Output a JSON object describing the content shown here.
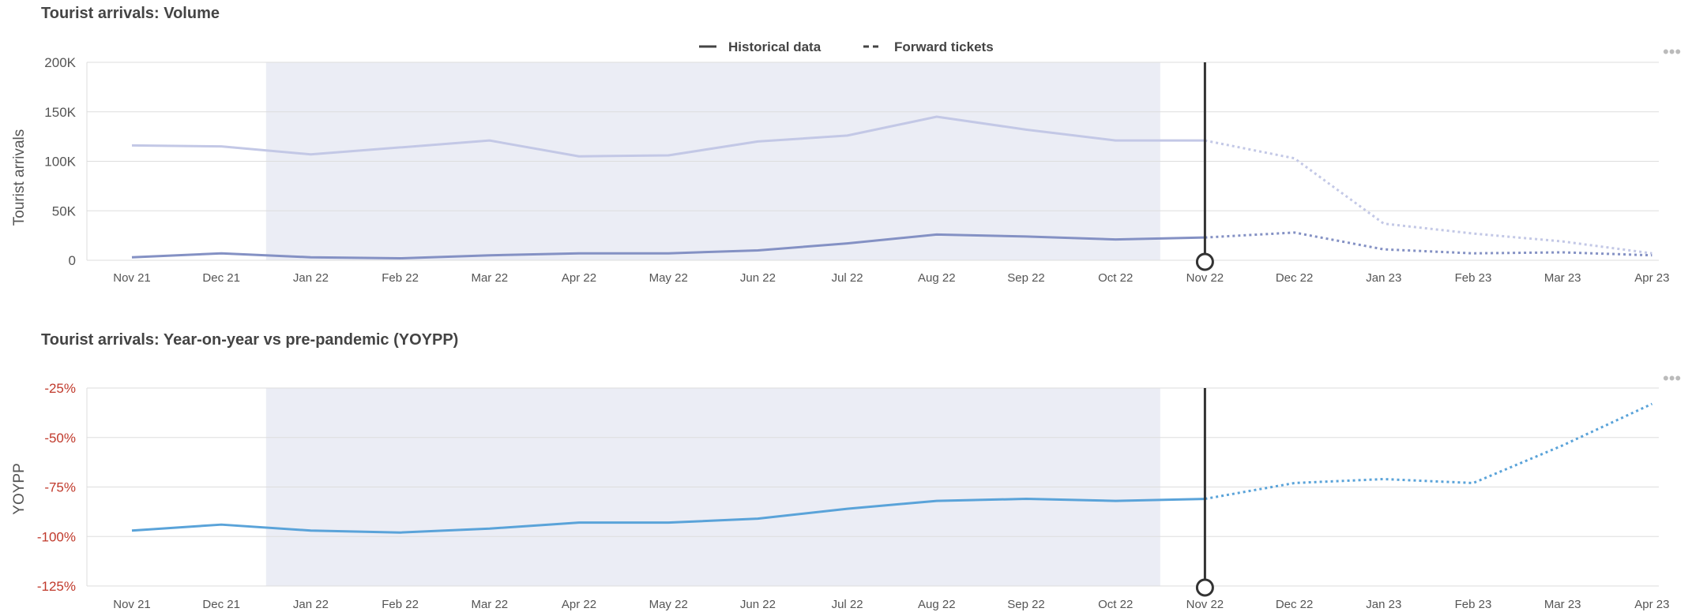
{
  "legend": {
    "historical": "Historical data",
    "forward": "Forward tickets"
  },
  "menu_glyph": "•••",
  "colors": {
    "shade": "#ebedf5",
    "light_series": "#c3c8e6",
    "dark_series": "#8491c4",
    "yoy_series": "#5aa3d9",
    "divider": "#333333",
    "grid": "#dddddd"
  },
  "chart_data": [
    {
      "type": "line",
      "title": "Tourist arrivals: Volume",
      "ylabel": "Tourist arrivals",
      "xlabel": "",
      "categories": [
        "Nov 21",
        "Dec 21",
        "Jan 22",
        "Feb 22",
        "Mar 22",
        "Apr 22",
        "May 22",
        "Jun 22",
        "Jul 22",
        "Aug 22",
        "Sep 22",
        "Oct 22",
        "Nov 22",
        "Dec 22",
        "Jan 23",
        "Feb 23",
        "Mar 23",
        "Apr 23"
      ],
      "ylim": [
        0,
        200000
      ],
      "yticks": [
        0,
        50000,
        100000,
        150000,
        200000
      ],
      "ytick_labels": [
        "0",
        "50K",
        "100K",
        "150K",
        "200K"
      ],
      "grid": true,
      "legend_position": "top-center",
      "shaded_period": [
        "Dec 21",
        "Oct 22"
      ],
      "current_marker": "Nov 22",
      "series": [
        {
          "style": "light",
          "historical_values": [
            116000,
            115000,
            107000,
            114000,
            121000,
            105000,
            106000,
            120000,
            126000,
            145000,
            132000,
            121000,
            121000
          ],
          "forward_values": [
            121000,
            103000,
            37000,
            27000,
            19000,
            7000
          ]
        },
        {
          "style": "dark",
          "historical_values": [
            3000,
            7000,
            3000,
            2000,
            5000,
            7000,
            7000,
            10000,
            17000,
            26000,
            24000,
            21000,
            23000
          ],
          "forward_values": [
            23000,
            28000,
            11000,
            7000,
            8000,
            5000
          ]
        }
      ]
    },
    {
      "type": "line",
      "title": "Tourist arrivals: Year-on-year vs pre-pandemic (YOYPP)",
      "ylabel": "YOYPP",
      "xlabel": "",
      "categories": [
        "Nov 21",
        "Dec 21",
        "Jan 22",
        "Feb 22",
        "Mar 22",
        "Apr 22",
        "May 22",
        "Jun 22",
        "Jul 22",
        "Aug 22",
        "Sep 22",
        "Oct 22",
        "Nov 22",
        "Dec 22",
        "Jan 23",
        "Feb 23",
        "Mar 23",
        "Apr 23"
      ],
      "ylim": [
        -125,
        -25
      ],
      "yticks": [
        -125,
        -100,
        -75,
        -50,
        -25
      ],
      "ytick_labels": [
        "-125%",
        "-100%",
        "-75%",
        "-50%",
        "-25%"
      ],
      "grid": true,
      "shaded_period": [
        "Dec 21",
        "Oct 22"
      ],
      "current_marker": "Nov 22",
      "series": [
        {
          "style": "yoy",
          "historical_values": [
            -97,
            -94,
            -97,
            -98,
            -96,
            -93,
            -93,
            -91,
            -86,
            -82,
            -81,
            -82,
            -81
          ],
          "forward_values": [
            -81,
            -73,
            -71,
            -73,
            -54,
            -33
          ]
        }
      ]
    }
  ]
}
